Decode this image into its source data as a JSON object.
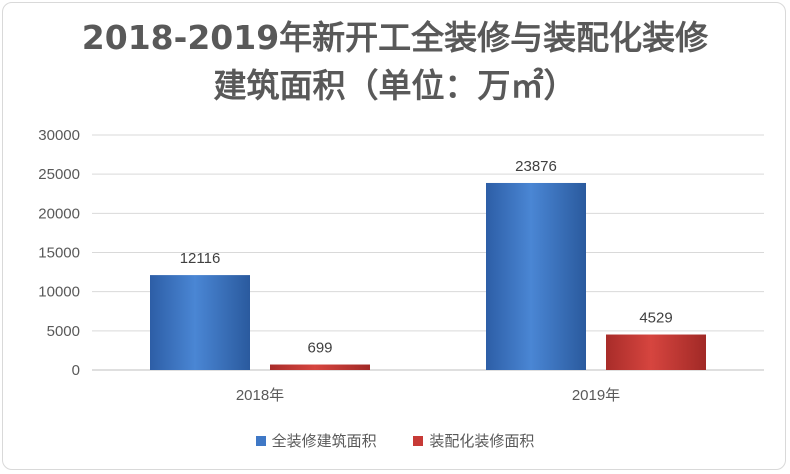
{
  "chart_data": {
    "type": "bar",
    "title_line1": "2018-2019年新开工全装修与装配化装修",
    "title_line2": "建筑面积（单位：万㎡）",
    "categories": [
      "2018年",
      "2019年"
    ],
    "series": [
      {
        "name": "全装修建筑面积",
        "values": [
          12116,
          23876
        ],
        "color": "#3f78c6"
      },
      {
        "name": "装配化装修面积",
        "values": [
          699,
          4529
        ],
        "color": "#c73a36"
      }
    ],
    "yticks": [
      "0",
      "5000",
      "10000",
      "15000",
      "20000",
      "25000",
      "30000"
    ],
    "ylim": [
      0,
      30000
    ],
    "grid": true,
    "legend_position": "bottom"
  }
}
